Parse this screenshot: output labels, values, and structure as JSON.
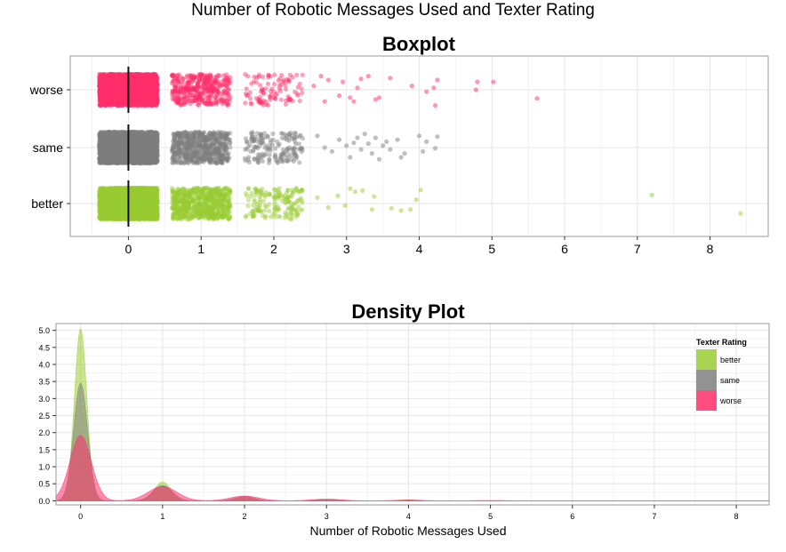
{
  "figure": {
    "title": "Number of Robotic Messages Used and Texter Rating"
  },
  "colors": {
    "better": "#9acd32",
    "same": "#7f7f7f",
    "worse": "#ff2e6a",
    "grid": "#e6e6e6",
    "panel_border": "#999999"
  },
  "chart_data": [
    {
      "type": "scatter",
      "title": "Boxplot",
      "xlabel": "",
      "ylabel": "",
      "xlim": [
        -0.8,
        8.8
      ],
      "x_ticks": [
        0,
        1,
        2,
        3,
        4,
        5,
        6,
        7,
        8
      ],
      "categories": [
        "better",
        "same",
        "worse"
      ],
      "grid": true,
      "jitter": {
        "x": 0.4,
        "y": 0.4
      },
      "median": {
        "better": 0,
        "same": 0,
        "worse": 0
      },
      "series": [
        {
          "name": "better",
          "counts_by_x": {
            "0": 4000,
            "1": 700,
            "2": 160
          },
          "points": [
            [
              2.6,
              0.15
            ],
            [
              2.75,
              -0.1
            ],
            [
              2.88,
              0.2
            ],
            [
              2.98,
              -0.05
            ],
            [
              3.05,
              0.38
            ],
            [
              3.12,
              0.3
            ],
            [
              3.22,
              0.33
            ],
            [
              3.35,
              -0.15
            ],
            [
              3.38,
              0.18
            ],
            [
              3.62,
              -0.12
            ],
            [
              3.75,
              -0.18
            ],
            [
              3.88,
              -0.15
            ],
            [
              3.96,
              0.1
            ],
            [
              4.02,
              0.35
            ],
            [
              7.2,
              0.22
            ],
            [
              8.42,
              -0.25
            ]
          ]
        },
        {
          "name": "same",
          "counts_by_x": {
            "0": 4000,
            "1": 600,
            "2": 160
          },
          "points": [
            [
              2.6,
              0.3
            ],
            [
              2.7,
              0.0
            ],
            [
              2.8,
              -0.1
            ],
            [
              2.9,
              0.2
            ],
            [
              3.0,
              0.05
            ],
            [
              3.05,
              -0.25
            ],
            [
              3.1,
              0.12
            ],
            [
              3.15,
              0.25
            ],
            [
              3.2,
              -0.05
            ],
            [
              3.25,
              0.35
            ],
            [
              3.3,
              0.1
            ],
            [
              3.35,
              -0.15
            ],
            [
              3.4,
              0.25
            ],
            [
              3.45,
              -0.3
            ],
            [
              3.5,
              0.05
            ],
            [
              3.55,
              0.15
            ],
            [
              3.6,
              -0.05
            ],
            [
              3.7,
              0.2
            ],
            [
              3.75,
              -0.25
            ],
            [
              3.8,
              -0.15
            ],
            [
              4.0,
              0.3
            ],
            [
              4.05,
              -0.1
            ],
            [
              4.1,
              0.15
            ],
            [
              4.22,
              -0.02
            ],
            [
              4.25,
              0.28
            ]
          ]
        },
        {
          "name": "worse",
          "counts_by_x": {
            "0": 3000,
            "1": 400,
            "2": 100
          },
          "points": [
            [
              2.55,
              0.1
            ],
            [
              2.65,
              0.35
            ],
            [
              2.7,
              -0.3
            ],
            [
              2.75,
              0.25
            ],
            [
              2.9,
              -0.15
            ],
            [
              2.95,
              0.2
            ],
            [
              3.05,
              -0.2
            ],
            [
              3.1,
              -0.3
            ],
            [
              3.15,
              0.05
            ],
            [
              3.2,
              0.28
            ],
            [
              3.3,
              0.35
            ],
            [
              3.4,
              -0.25
            ],
            [
              3.45,
              -0.2
            ],
            [
              3.6,
              0.3
            ],
            [
              3.9,
              0.1
            ],
            [
              4.1,
              -0.05
            ],
            [
              4.2,
              0.05
            ],
            [
              4.25,
              0.25
            ],
            [
              4.22,
              -0.4
            ],
            [
              4.8,
              0.2
            ],
            [
              4.78,
              0.0
            ],
            [
              5.02,
              0.2
            ],
            [
              5.62,
              -0.22
            ]
          ]
        }
      ]
    },
    {
      "type": "area",
      "title": "Density Plot",
      "xlabel": "Number of Robotic Messages Used",
      "ylabel": "",
      "xlim": [
        -0.3,
        8.4
      ],
      "ylim": [
        -0.12,
        5.2
      ],
      "x_ticks": [
        0,
        1,
        2,
        3,
        4,
        5,
        6,
        7,
        8
      ],
      "y_ticks": [
        "0.0",
        "0.5",
        "1.0",
        "1.5",
        "2.0",
        "2.5",
        "3.0",
        "3.5",
        "4.0",
        "4.5",
        "5.0"
      ],
      "grid": true,
      "legend": {
        "title": "Texter Rating",
        "placement": "top-right"
      },
      "series": [
        {
          "name": "better",
          "bandwidth": 0.075,
          "peaks": [
            [
              0,
              5.05
            ],
            [
              1,
              0.55
            ],
            [
              2,
              0.1
            ],
            [
              3,
              0.03
            ],
            [
              4,
              0.03
            ]
          ]
        },
        {
          "name": "same",
          "bandwidth": 0.085,
          "peaks": [
            [
              0,
              3.45
            ],
            [
              1,
              0.45
            ],
            [
              2,
              0.13
            ],
            [
              3,
              0.04
            ],
            [
              4,
              0.02
            ]
          ]
        },
        {
          "name": "worse",
          "bandwidth": 0.13,
          "peaks": [
            [
              0,
              1.92
            ],
            [
              1,
              0.42
            ],
            [
              2,
              0.14
            ],
            [
              3,
              0.05
            ],
            [
              4,
              0.02
            ],
            [
              5,
              0.01
            ]
          ]
        }
      ]
    }
  ]
}
